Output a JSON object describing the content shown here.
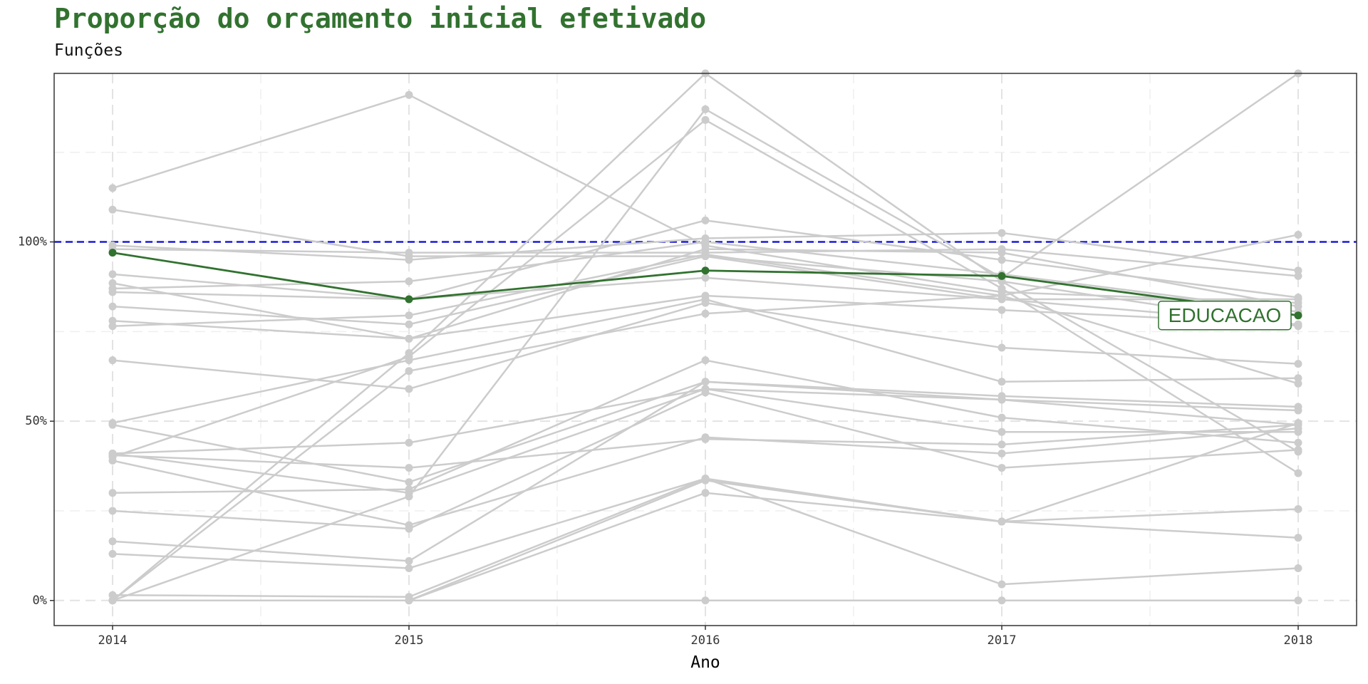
{
  "header": {
    "title": "Proporção do orçamento inicial efetivado",
    "subtitle": "Funções"
  },
  "colors": {
    "background_series": "#cccccc",
    "highlight": "#31722f",
    "reference_line": "#1a1ad6"
  },
  "chart_data": {
    "type": "line",
    "title": "Proporção do orçamento inicial efetivado",
    "subtitle": "Funções",
    "xlabel": "Ano",
    "ylabel": "",
    "x": [
      "2014",
      "2015",
      "2016",
      "2017",
      "2018"
    ],
    "xlim": [
      2013.8,
      2018.2
    ],
    "ylim": [
      -7,
      147
    ],
    "y_ticks": [
      0,
      50,
      100
    ],
    "y_tick_labels": [
      "0%",
      "50%",
      "100%"
    ],
    "reference_line": {
      "y": 100,
      "style": "dashed"
    },
    "grid": true,
    "highlight_series": "EDUCACAO",
    "series": [
      {
        "name": "EDUCACAO",
        "values": [
          97,
          84,
          92,
          90.5,
          79.5
        ]
      },
      {
        "values": [
          115,
          141,
          99,
          86,
          83
        ]
      },
      {
        "values": [
          109,
          96,
          96,
          84,
          84
        ]
      },
      {
        "values": [
          99,
          95,
          101,
          102.5,
          92
        ]
      },
      {
        "values": [
          98,
          97,
          97,
          98,
          90.5
        ]
      },
      {
        "values": [
          91,
          84,
          106,
          95,
          84.5
        ]
      },
      {
        "values": [
          88.5,
          73,
          98,
          97,
          82
        ]
      },
      {
        "values": [
          87,
          89,
          100,
          91,
          80.5
        ]
      },
      {
        "values": [
          86,
          84,
          90,
          84,
          77
        ]
      },
      {
        "values": [
          82,
          77,
          96,
          89,
          76.5
        ]
      },
      {
        "values": [
          78,
          73,
          85,
          81,
          77
        ]
      },
      {
        "values": [
          76.5,
          79.5,
          96.5,
          85,
          60.5
        ]
      },
      {
        "values": [
          67,
          59,
          83,
          70.5,
          66
        ]
      },
      {
        "values": [
          49.5,
          67,
          84,
          61,
          62
        ]
      },
      {
        "values": [
          49,
          33,
          61,
          57,
          54
        ]
      },
      {
        "values": [
          41,
          44,
          59,
          56,
          53
        ]
      },
      {
        "values": [
          40,
          68,
          134,
          87,
          35.5
        ]
      },
      {
        "values": [
          41,
          30,
          59,
          47,
          47
        ]
      },
      {
        "values": [
          40.5,
          37,
          45,
          43.5,
          49
        ]
      },
      {
        "values": [
          39,
          21,
          45.5,
          41,
          48
        ]
      },
      {
        "values": [
          30,
          31,
          67,
          51,
          44
        ]
      },
      {
        "values": [
          25,
          20,
          58,
          37,
          42
        ]
      },
      {
        "values": [
          16.5,
          11,
          61,
          56,
          49
        ]
      },
      {
        "values": [
          13,
          9,
          34,
          22,
          25.5
        ]
      },
      {
        "values": [
          1.5,
          1,
          34,
          4.5,
          9
        ]
      },
      {
        "values": [
          0,
          0,
          33.5,
          22,
          17.5
        ]
      },
      {
        "values": [
          0,
          29,
          137,
          90,
          147
        ]
      },
      {
        "values": [
          0,
          64,
          80,
          85,
          102
        ]
      },
      {
        "values": [
          0,
          69,
          147,
          89,
          41.5
        ]
      },
      {
        "values": [
          0,
          0,
          0,
          0,
          0
        ]
      },
      {
        "values": [
          0,
          0,
          30,
          22,
          49.5
        ]
      }
    ]
  }
}
